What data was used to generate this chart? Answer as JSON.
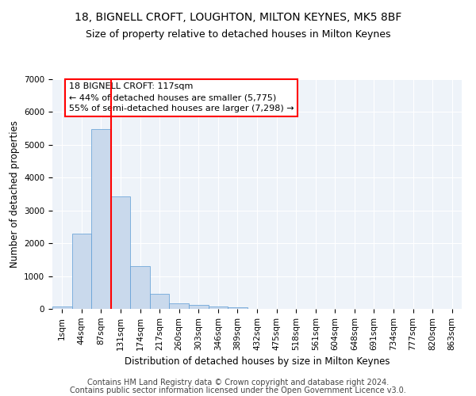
{
  "title": "18, BIGNELL CROFT, LOUGHTON, MILTON KEYNES, MK5 8BF",
  "subtitle": "Size of property relative to detached houses in Milton Keynes",
  "xlabel": "Distribution of detached houses by size in Milton Keynes",
  "ylabel": "Number of detached properties",
  "bar_color": "#c9d9ec",
  "bar_edge_color": "#5b9bd5",
  "categories": [
    "1sqm",
    "44sqm",
    "87sqm",
    "131sqm",
    "174sqm",
    "217sqm",
    "260sqm",
    "303sqm",
    "346sqm",
    "389sqm",
    "432sqm",
    "475sqm",
    "518sqm",
    "561sqm",
    "604sqm",
    "648sqm",
    "691sqm",
    "734sqm",
    "777sqm",
    "820sqm",
    "863sqm"
  ],
  "values": [
    75,
    2290,
    5480,
    3430,
    1310,
    460,
    160,
    110,
    80,
    55,
    0,
    0,
    0,
    0,
    0,
    0,
    0,
    0,
    0,
    0,
    0
  ],
  "ylim": [
    0,
    7000
  ],
  "yticks": [
    0,
    1000,
    2000,
    3000,
    4000,
    5000,
    6000,
    7000
  ],
  "property_line_x": 2.5,
  "annotation_title": "18 BIGNELL CROFT: 117sqm",
  "annotation_line1": "← 44% of detached houses are smaller (5,775)",
  "annotation_line2": "55% of semi-detached houses are larger (7,298) →",
  "footer1": "Contains HM Land Registry data © Crown copyright and database right 2024.",
  "footer2": "Contains public sector information licensed under the Open Government Licence v3.0.",
  "background_color": "#eef3f9",
  "grid_color": "#ffffff",
  "fig_bg_color": "#ffffff",
  "title_fontsize": 10,
  "subtitle_fontsize": 9,
  "axis_label_fontsize": 8.5,
  "tick_fontsize": 7.5,
  "annotation_fontsize": 8,
  "footer_fontsize": 7
}
